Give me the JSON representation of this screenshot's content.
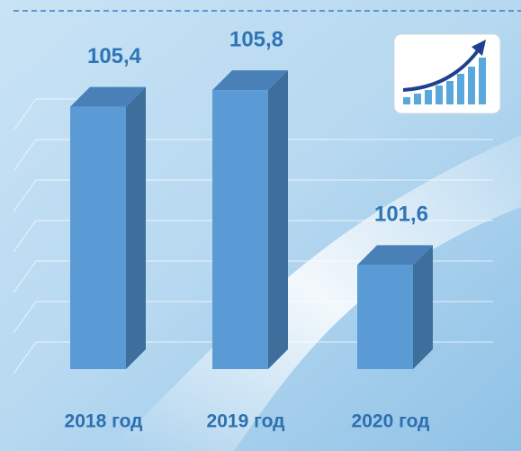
{
  "chart_data": {
    "type": "bar3d",
    "categories": [
      "2018 год",
      "2019 год",
      "2020 год"
    ],
    "values": [
      105.4,
      105.8,
      101.6
    ],
    "value_labels": [
      "105,4",
      "105,8",
      "101,6"
    ],
    "color": "#5b9bd5",
    "ylim": [
      99.1,
      107.1
    ]
  }
}
